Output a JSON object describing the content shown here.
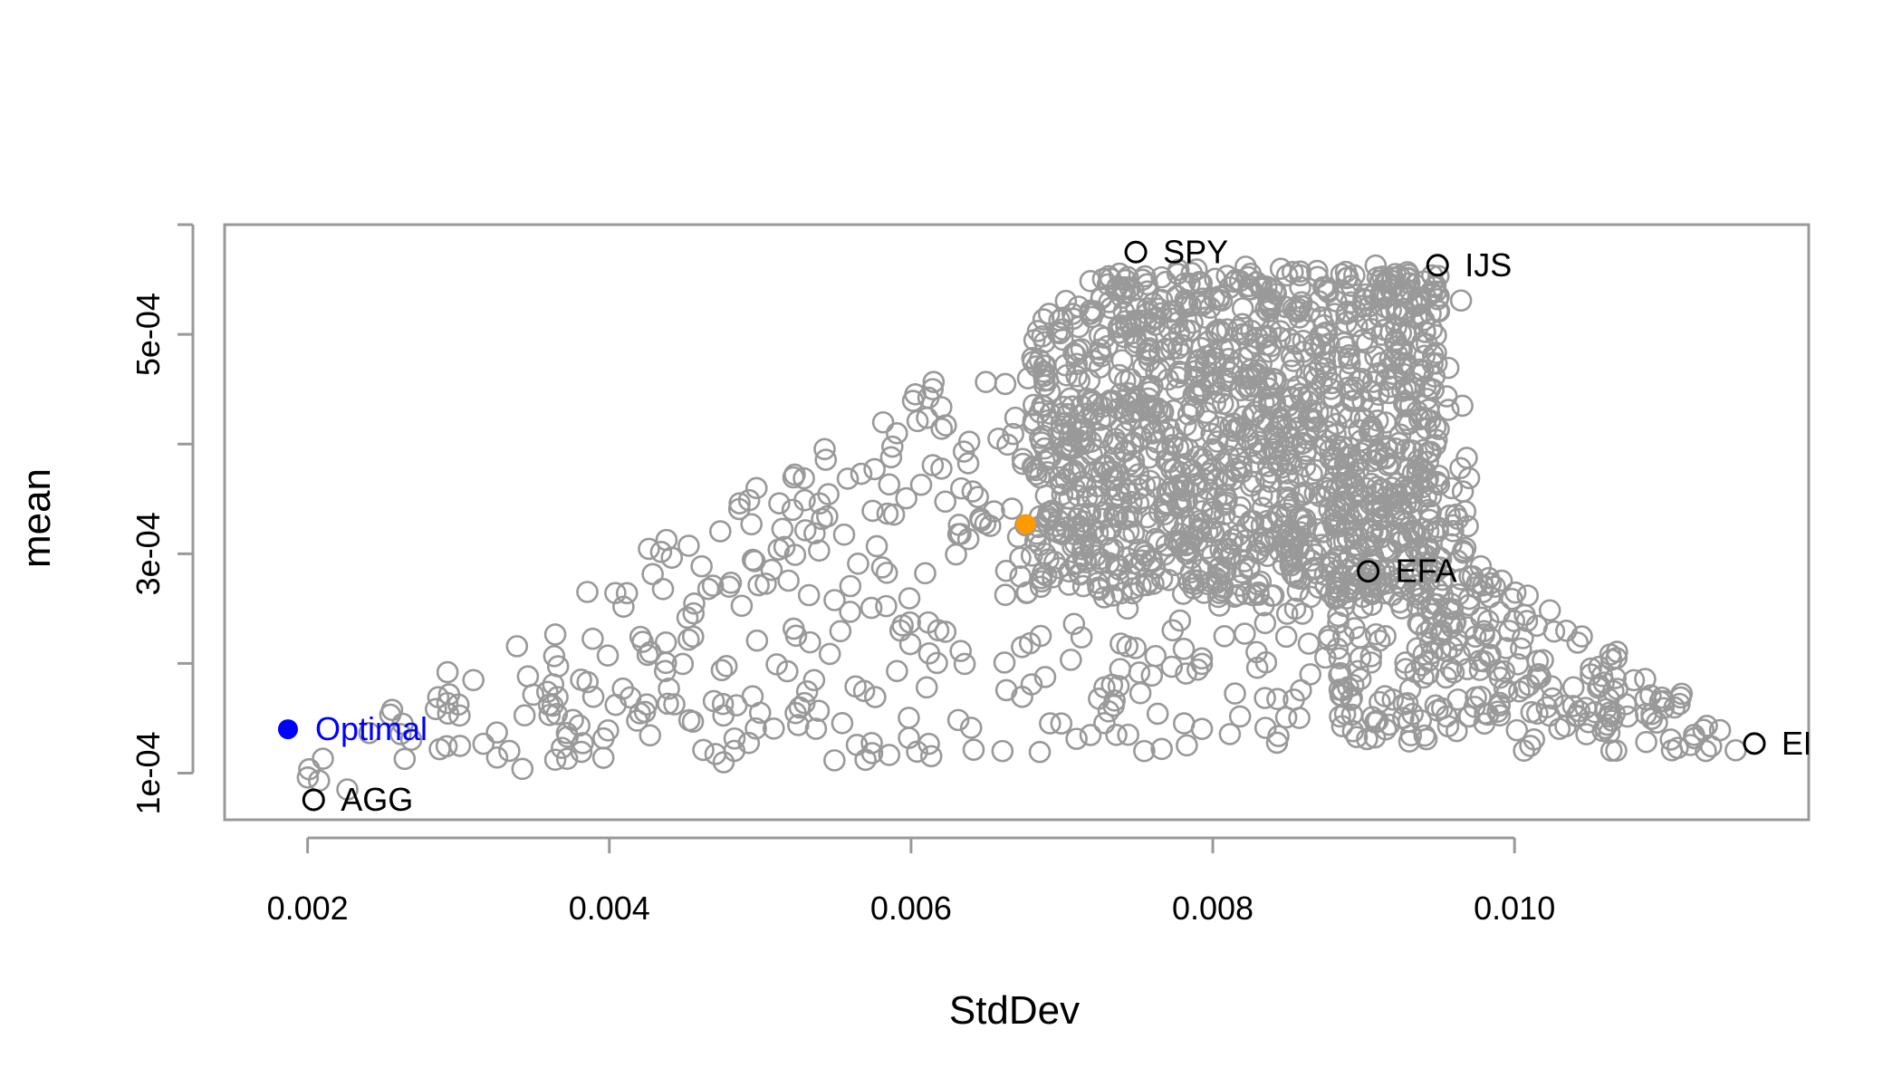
{
  "chart_data": {
    "type": "scatter",
    "title": "",
    "xlabel": "StdDev",
    "ylabel": "mean",
    "xlim": [
      0.00145,
      0.01195
    ],
    "ylim": [
      5.75e-05,
      0.0006
    ],
    "x_ticks": [
      {
        "value": 0.002,
        "label": "0.002"
      },
      {
        "value": 0.004,
        "label": "0.004"
      },
      {
        "value": 0.006,
        "label": "0.006"
      },
      {
        "value": 0.008,
        "label": "0.008"
      },
      {
        "value": 0.01,
        "label": "0.010"
      }
    ],
    "y_ticks": [
      {
        "value": 0.0001,
        "label": "1e-04"
      },
      {
        "value": 0.0002,
        "label": ""
      },
      {
        "value": 0.0003,
        "label": "3e-04"
      },
      {
        "value": 0.0004,
        "label": ""
      },
      {
        "value": 0.0005,
        "label": "5e-04"
      },
      {
        "value": 0.0006,
        "label": ""
      }
    ],
    "colors": {
      "random_portfolios": "#999999",
      "assets": "#000000",
      "optimal": "#0000ff",
      "equal_weight": "#ff9900",
      "box": "#999999"
    },
    "assets": [
      {
        "label": "SPY",
        "x": 0.00749,
        "y": 0.000575
      },
      {
        "label": "IJS",
        "x": 0.00949,
        "y": 0.000563
      },
      {
        "label": "EFA",
        "x": 0.00903,
        "y": 0.000284
      },
      {
        "label": "AGG",
        "x": 0.00204,
        "y": 7.57e-05
      },
      {
        "label": "EE",
        "x": 0.01159,
        "y": 0.000127
      }
    ],
    "optimal": {
      "label": "Optimal",
      "x": 0.00187,
      "y": 0.00014
    },
    "equal_weight": {
      "x": 0.00676,
      "y": 0.000327
    },
    "random_portfolios": {
      "count": 2000,
      "description_note": ""
    }
  }
}
